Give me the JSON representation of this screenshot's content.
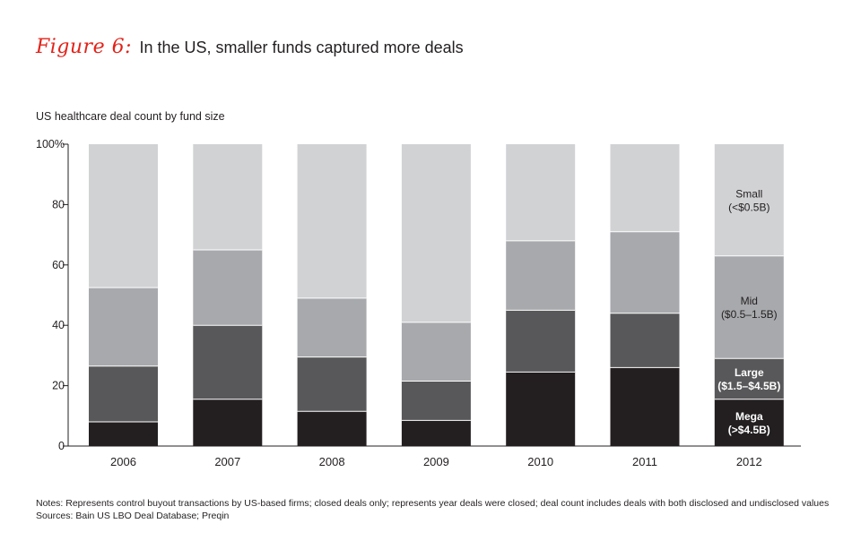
{
  "figure": {
    "label": "Figure 6:",
    "title": "In the US, smaller funds captured more deals"
  },
  "chart_data": {
    "type": "bar",
    "stacked": true,
    "title": "US healthcare deal count by fund size",
    "xlabel": "",
    "ylabel": "",
    "ylim": [
      0,
      100
    ],
    "yticks": [
      "0",
      "20",
      "40",
      "60",
      "80",
      "100%"
    ],
    "categories": [
      "2006",
      "2007",
      "2008",
      "2009",
      "2010",
      "2011",
      "2012"
    ],
    "series": [
      {
        "name": "Mega (>$4.5B)",
        "label_lines": [
          "Mega",
          "(>$4.5B)"
        ],
        "color": "#231f20",
        "label_color": "#ffffff",
        "values": [
          8,
          15.5,
          11.5,
          8.5,
          24.5,
          26,
          15.5
        ]
      },
      {
        "name": "Large ($1.5–$4.5B)",
        "label_lines": [
          "Large",
          "($1.5–$4.5B)"
        ],
        "color": "#58585a",
        "label_color": "#ffffff",
        "values": [
          18.5,
          24.5,
          18,
          13,
          20.5,
          18,
          13.5
        ]
      },
      {
        "name": "Mid ($0.5–1.5B)",
        "label_lines": [
          "Mid",
          "($0.5–1.5B)"
        ],
        "color": "#a7a9ac",
        "label_color": "#231f20",
        "values": [
          26,
          25,
          19.5,
          19.5,
          23,
          27,
          34
        ]
      },
      {
        "name": "Small (<$0.5B)",
        "label_lines": [
          "Small",
          "(<$0.5B)"
        ],
        "color": "#d1d2d4",
        "label_color": "#231f20",
        "values": [
          47.5,
          35,
          51,
          59,
          32,
          29,
          37
        ]
      }
    ],
    "grid": false,
    "legend": "inline labels on 2012 bar"
  },
  "notes": {
    "line1": "Notes: Represents control buyout transactions by US-based firms; closed deals only; represents year deals were closed; deal count includes deals with both disclosed and undisclosed values",
    "line2": "Sources: Bain US LBO Deal Database; Preqin"
  }
}
